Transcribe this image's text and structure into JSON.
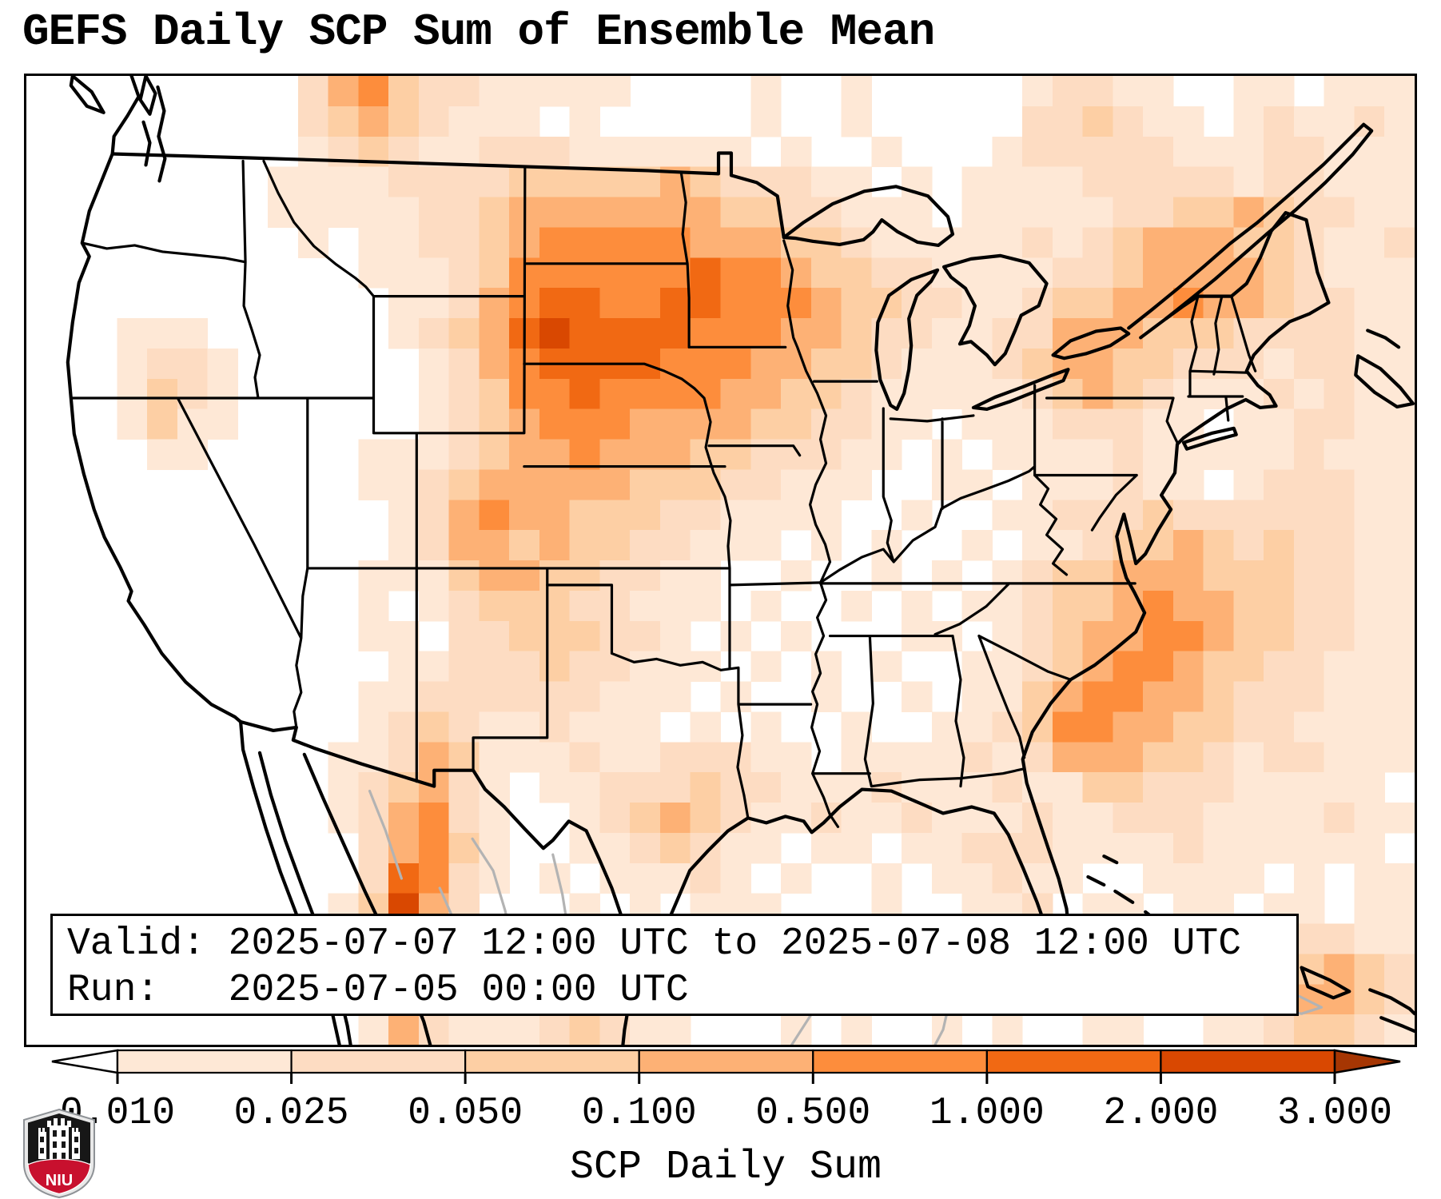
{
  "title": "GEFS Daily SCP Sum of Ensemble Mean",
  "info_box": {
    "valid": "Valid: 2025-07-07 12:00 UTC to 2025-07-08 12:00 UTC",
    "run": "Run:   2025-07-05 00:00 UTC"
  },
  "colorbar": {
    "label": "SCP Daily Sum",
    "tick_labels": [
      "0.010",
      "0.025",
      "0.050",
      "0.100",
      "0.500",
      "1.000",
      "2.000",
      "3.000"
    ],
    "segment_colors": [
      "#fee8d6",
      "#fddcc2",
      "#fdcfa4",
      "#fdb175",
      "#fd8d3c",
      "#f16913",
      "#d94801"
    ],
    "under_color": "#ffffff",
    "over_color": "#a63603"
  },
  "logo": {
    "text": "NIU",
    "shield_black": "#171717",
    "shield_red": "#c8102e",
    "border": "#8e9296"
  },
  "chart_data": {
    "type": "heatmap",
    "title": "GEFS Daily SCP Sum of Ensemble Mean",
    "variable": "SCP Daily Sum",
    "region": "CONUS",
    "level_boundaries": [
      0.01,
      0.025,
      0.05,
      0.1,
      0.5,
      1.0,
      2.0,
      3.0
    ],
    "level_colors": [
      "#ffffff",
      "#fee8d6",
      "#fddcc2",
      "#fdcfa4",
      "#fdb175",
      "#fd8d3c",
      "#f16913",
      "#d94801",
      "#a63603"
    ],
    "cols": 46,
    "rows": 32,
    "grid": [
      "0000000002453221111100001001000001221100110111",
      "0000000002343211101000001001000002232110121121",
      "0000000001232112221111110100100012222211122111",
      "0000000011112222333334322211010111122222122111",
      "0000000011111223444444433221110111112233432211",
      "0000000001011223455555444332111112123444332112",
      "0000000000011123555555655433221111223444432111",
      "0000000000001124566556655543322112334454432211",
      "0001110000001234676666555443221122444333222211",
      "0001221000000124566665554433211123443322212211",
      "0001321000000123556555544332111112343211121211",
      "0001311000000123455544443322110111222110112211",
      "0000110000011123445444332221101011112111112111",
      "0000000000011234444433322111001101112110122211",
      "0000000000001245443332211110010011222322222211",
      "0000000000001244343322111010100101123343232211",
      "0000000000011134433221100100101012334443332211",
      "0000000000010123332211101001010112334544332211",
      "0000000000011022333221010100011012344554332211",
      "0000000000001122232211101010100112345543322111",
      "0000000000011222222111010010010113455443222111",
      "0000000000012321121110101001001123554433221111",
      "0000000000112431112112221101111212444332122111",
      "0000000000123421011222322111211121133222111110",
      "0000000000124521001234321121121112112221111211",
      "0000000000024531001123211011011222111121111110",
      "0000000000026521010111210100101121100111101011",
      "0000000000137420001010111000100112011011011011",
      "0000000000145521010001101001001111010101112211",
      "0000000000036410101010010100010110101101123432",
      "0000000000025310010101101010100011010110234432",
      "0000000000014211123211000101001010011001123321"
    ]
  }
}
